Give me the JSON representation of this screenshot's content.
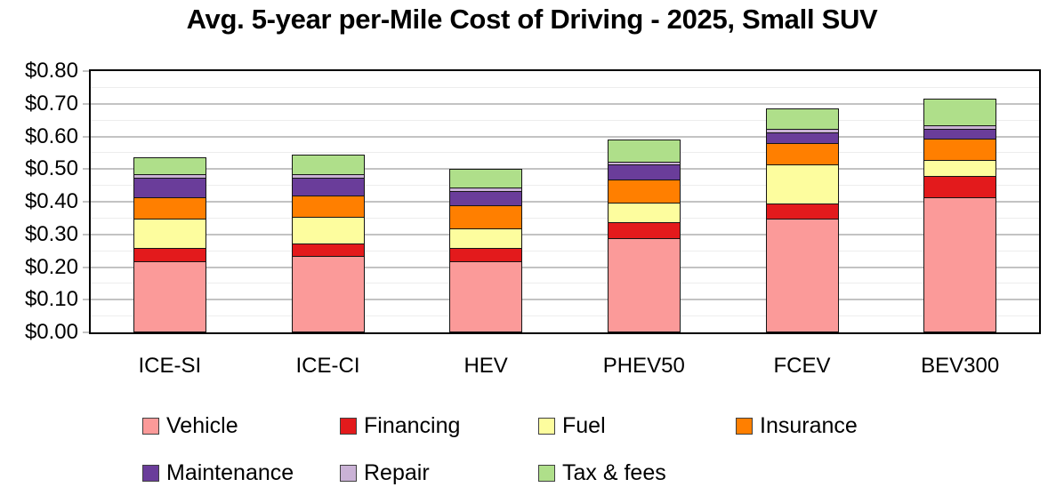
{
  "chart_data": {
    "type": "bar",
    "stacked": true,
    "title": "Avg. 5-year per-Mile Cost of Driving - 2025, Small SUV",
    "xlabel": "",
    "ylabel": "",
    "ylim": [
      0,
      0.8
    ],
    "y_major_step": 0.1,
    "y_minor_step": 0.05,
    "y_tick_labels": [
      "$0.00",
      "$0.10",
      "$0.20",
      "$0.30",
      "$0.40",
      "$0.50",
      "$0.60",
      "$0.70",
      "$0.80"
    ],
    "grid": "on",
    "legend_position": "bottom",
    "categories": [
      "ICE-SI",
      "ICE-CI",
      "HEV",
      "PHEV50",
      "FCEV",
      "BEV300"
    ],
    "series": [
      {
        "name": "Vehicle",
        "color": "#FB9A99",
        "values": [
          0.22,
          0.235,
          0.22,
          0.29,
          0.35,
          0.415
        ]
      },
      {
        "name": "Financing",
        "color": "#E31A1C",
        "values": [
          0.04,
          0.04,
          0.04,
          0.05,
          0.045,
          0.065
        ]
      },
      {
        "name": "Fuel",
        "color": "#FDFD9E",
        "values": [
          0.09,
          0.08,
          0.06,
          0.06,
          0.12,
          0.05
        ]
      },
      {
        "name": "Insurance",
        "color": "#FF7F00",
        "values": [
          0.065,
          0.065,
          0.07,
          0.07,
          0.065,
          0.065
        ]
      },
      {
        "name": "Maintenance",
        "color": "#6A3D9A",
        "values": [
          0.06,
          0.055,
          0.045,
          0.045,
          0.035,
          0.03
        ]
      },
      {
        "name": "Repair",
        "color": "#CAB2D6",
        "values": [
          0.01,
          0.01,
          0.01,
          0.01,
          0.01,
          0.01
        ]
      },
      {
        "name": "Tax & fees",
        "color": "#AFDF8A",
        "values": [
          0.05,
          0.06,
          0.055,
          0.065,
          0.06,
          0.08
        ]
      }
    ],
    "totals": [
      0.535,
      0.545,
      0.5,
      0.59,
      0.685,
      0.715
    ]
  },
  "colors": {
    "frame": "#000000",
    "major_grid": "#c3c3c3",
    "minor_grid": "#ededed",
    "text": "#000000",
    "background": "#ffffff"
  }
}
